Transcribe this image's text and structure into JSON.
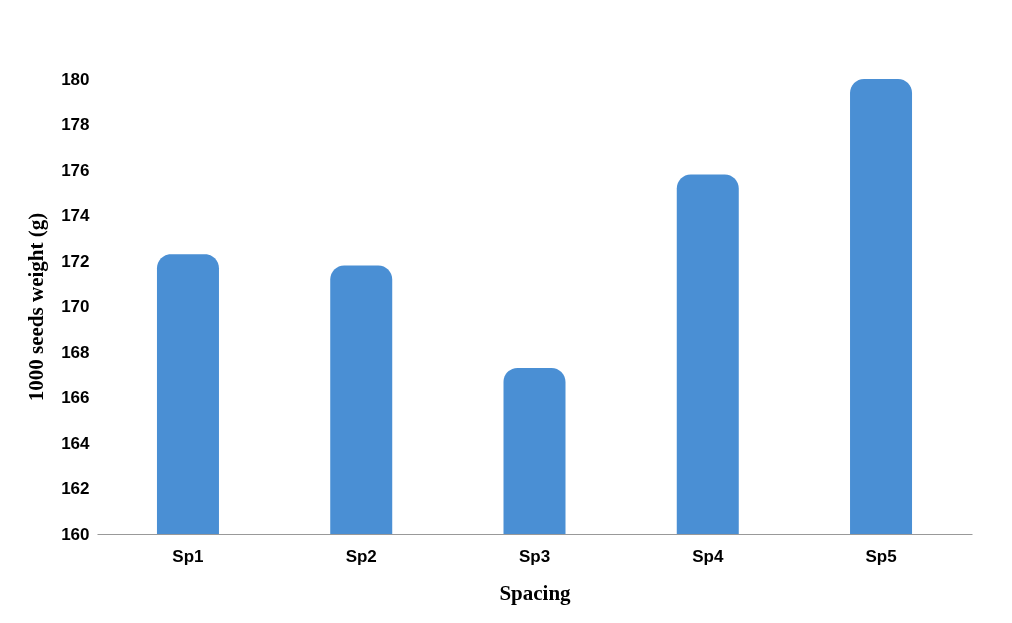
{
  "chart_data": {
    "type": "bar",
    "xlabel": "Spacing",
    "ylabel": "1000 seeds weight (g)",
    "categories": [
      "Sp1",
      "Sp2",
      "Sp3",
      "Sp4",
      "Sp5"
    ],
    "values": [
      172.3,
      171.8,
      167.3,
      175.8,
      180
    ],
    "color": "#4a8fd4",
    "ylim": [
      160,
      180
    ],
    "yticks": [
      160,
      162,
      164,
      166,
      168,
      170,
      172,
      174,
      176,
      178,
      180
    ],
    "grid": false
  }
}
